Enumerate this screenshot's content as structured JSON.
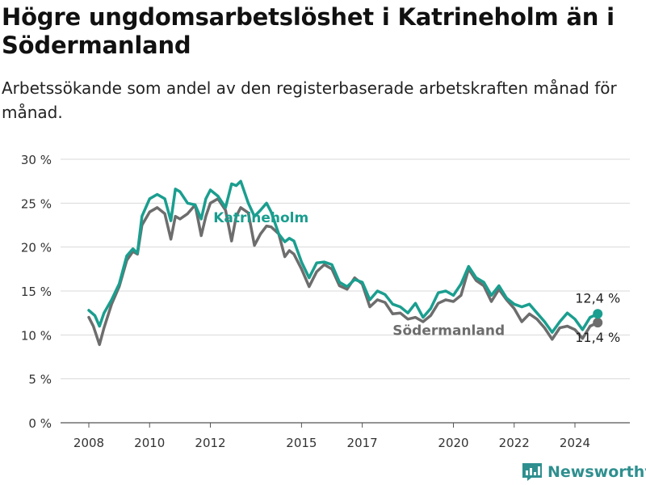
{
  "title": "Högre ungdomsarbetslöshet i Katrineholm än i Södermanland",
  "subtitle": "Arbetssökande som andel av den registerbaserade arbetskraften månad för månad.",
  "brand": "Newsworthy",
  "chart_data": {
    "type": "line",
    "ylim": [
      0,
      30
    ],
    "yticks": [
      0,
      5,
      10,
      15,
      20,
      25,
      30
    ],
    "ytick_labels": [
      "0 %",
      "5 %",
      "10 %",
      "15 %",
      "20 %",
      "25 %",
      "30 %"
    ],
    "xlim": [
      2007.5,
      2025.75
    ],
    "xticks": [
      2008,
      2010,
      2012,
      2015,
      2017,
      2020,
      2022,
      2024
    ],
    "xtick_labels": [
      "2008",
      "2010",
      "2012",
      "2015",
      "2017",
      "2020",
      "2022",
      "2024"
    ],
    "grid": "horizontal",
    "series": [
      {
        "name": "Södermanland",
        "color": "#6d6d6d",
        "end_label": "11,4 %",
        "points": [
          [
            2008.0,
            12.0
          ],
          [
            2008.15,
            11.0
          ],
          [
            2008.35,
            8.9
          ],
          [
            2008.5,
            10.8
          ],
          [
            2008.75,
            13.5
          ],
          [
            2009.0,
            15.5
          ],
          [
            2009.25,
            18.5
          ],
          [
            2009.45,
            19.5
          ],
          [
            2009.6,
            19.2
          ],
          [
            2009.75,
            22.5
          ],
          [
            2010.0,
            24.0
          ],
          [
            2010.25,
            24.5
          ],
          [
            2010.5,
            23.8
          ],
          [
            2010.7,
            20.9
          ],
          [
            2010.85,
            23.5
          ],
          [
            2011.0,
            23.2
          ],
          [
            2011.25,
            23.8
          ],
          [
            2011.5,
            24.8
          ],
          [
            2011.7,
            21.3
          ],
          [
            2011.85,
            23.5
          ],
          [
            2012.0,
            25.0
          ],
          [
            2012.25,
            25.5
          ],
          [
            2012.5,
            24.2
          ],
          [
            2012.7,
            20.7
          ],
          [
            2012.85,
            23.5
          ],
          [
            2013.0,
            24.5
          ],
          [
            2013.25,
            23.9
          ],
          [
            2013.45,
            20.2
          ],
          [
            2013.65,
            21.5
          ],
          [
            2013.85,
            22.4
          ],
          [
            2014.0,
            22.3
          ],
          [
            2014.25,
            21.5
          ],
          [
            2014.45,
            18.9
          ],
          [
            2014.6,
            19.6
          ],
          [
            2014.75,
            19.2
          ],
          [
            2015.0,
            17.5
          ],
          [
            2015.25,
            15.5
          ],
          [
            2015.5,
            17.2
          ],
          [
            2015.75,
            18.0
          ],
          [
            2016.0,
            17.5
          ],
          [
            2016.25,
            15.6
          ],
          [
            2016.5,
            15.2
          ],
          [
            2016.75,
            16.5
          ],
          [
            2017.0,
            15.8
          ],
          [
            2017.25,
            13.2
          ],
          [
            2017.5,
            14.0
          ],
          [
            2017.75,
            13.7
          ],
          [
            2018.0,
            12.4
          ],
          [
            2018.25,
            12.5
          ],
          [
            2018.5,
            11.8
          ],
          [
            2018.75,
            12.0
          ],
          [
            2019.0,
            11.5
          ],
          [
            2019.25,
            12.2
          ],
          [
            2019.5,
            13.6
          ],
          [
            2019.75,
            14.0
          ],
          [
            2020.0,
            13.8
          ],
          [
            2020.25,
            14.5
          ],
          [
            2020.5,
            17.5
          ],
          [
            2020.75,
            16.2
          ],
          [
            2021.0,
            15.6
          ],
          [
            2021.25,
            13.8
          ],
          [
            2021.5,
            15.2
          ],
          [
            2021.75,
            14.0
          ],
          [
            2022.0,
            13.0
          ],
          [
            2022.25,
            11.5
          ],
          [
            2022.5,
            12.4
          ],
          [
            2022.75,
            11.8
          ],
          [
            2023.0,
            10.8
          ],
          [
            2023.25,
            9.5
          ],
          [
            2023.5,
            10.8
          ],
          [
            2023.75,
            11.0
          ],
          [
            2024.0,
            10.6
          ],
          [
            2024.25,
            9.6
          ],
          [
            2024.5,
            11.0
          ],
          [
            2024.75,
            11.4
          ]
        ]
      },
      {
        "name": "Katrineholm",
        "color": "#1a9e8f",
        "end_label": "12,4 %",
        "points": [
          [
            2008.0,
            12.8
          ],
          [
            2008.2,
            12.2
          ],
          [
            2008.35,
            11.0
          ],
          [
            2008.5,
            12.5
          ],
          [
            2008.75,
            14.0
          ],
          [
            2009.0,
            15.8
          ],
          [
            2009.25,
            19.0
          ],
          [
            2009.45,
            19.8
          ],
          [
            2009.6,
            19.3
          ],
          [
            2009.75,
            23.5
          ],
          [
            2010.0,
            25.5
          ],
          [
            2010.25,
            26.0
          ],
          [
            2010.5,
            25.5
          ],
          [
            2010.7,
            23.0
          ],
          [
            2010.85,
            26.6
          ],
          [
            2011.0,
            26.3
          ],
          [
            2011.25,
            25.0
          ],
          [
            2011.5,
            24.8
          ],
          [
            2011.7,
            23.2
          ],
          [
            2011.85,
            25.5
          ],
          [
            2012.0,
            26.5
          ],
          [
            2012.25,
            25.8
          ],
          [
            2012.5,
            24.5
          ],
          [
            2012.7,
            27.2
          ],
          [
            2012.85,
            27.0
          ],
          [
            2013.0,
            27.5
          ],
          [
            2013.25,
            25.0
          ],
          [
            2013.45,
            23.5
          ],
          [
            2013.65,
            24.2
          ],
          [
            2013.85,
            25.0
          ],
          [
            2014.0,
            24.0
          ],
          [
            2014.25,
            21.5
          ],
          [
            2014.45,
            20.6
          ],
          [
            2014.6,
            21.0
          ],
          [
            2014.75,
            20.7
          ],
          [
            2015.0,
            18.3
          ],
          [
            2015.25,
            16.5
          ],
          [
            2015.5,
            18.2
          ],
          [
            2015.75,
            18.3
          ],
          [
            2016.0,
            18.0
          ],
          [
            2016.25,
            16.0
          ],
          [
            2016.5,
            15.5
          ],
          [
            2016.75,
            16.3
          ],
          [
            2017.0,
            16.0
          ],
          [
            2017.25,
            14.0
          ],
          [
            2017.5,
            15.0
          ],
          [
            2017.75,
            14.6
          ],
          [
            2018.0,
            13.5
          ],
          [
            2018.25,
            13.2
          ],
          [
            2018.5,
            12.5
          ],
          [
            2018.75,
            13.6
          ],
          [
            2019.0,
            12.0
          ],
          [
            2019.25,
            13.0
          ],
          [
            2019.5,
            14.8
          ],
          [
            2019.75,
            15.0
          ],
          [
            2020.0,
            14.5
          ],
          [
            2020.25,
            15.8
          ],
          [
            2020.5,
            17.8
          ],
          [
            2020.75,
            16.5
          ],
          [
            2021.0,
            16.0
          ],
          [
            2021.25,
            14.5
          ],
          [
            2021.5,
            15.6
          ],
          [
            2021.75,
            14.2
          ],
          [
            2022.0,
            13.5
          ],
          [
            2022.25,
            13.2
          ],
          [
            2022.5,
            13.5
          ],
          [
            2022.75,
            12.5
          ],
          [
            2023.0,
            11.5
          ],
          [
            2023.25,
            10.3
          ],
          [
            2023.5,
            11.5
          ],
          [
            2023.75,
            12.5
          ],
          [
            2024.0,
            11.8
          ],
          [
            2024.25,
            10.6
          ],
          [
            2024.5,
            12.0
          ],
          [
            2024.75,
            12.4
          ]
        ]
      }
    ],
    "annotations": [
      {
        "series": "Katrineholm",
        "text": "Katrineholm",
        "at": [
          2012.1,
          22.8
        ],
        "color": "#1a9e8f"
      },
      {
        "series": "Södermanland",
        "text": "Södermanland",
        "at": [
          2018.0,
          10.0
        ],
        "color": "#6d6d6d"
      }
    ]
  }
}
